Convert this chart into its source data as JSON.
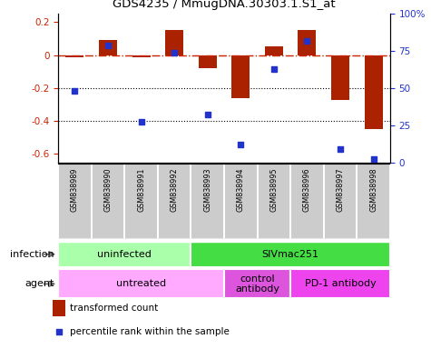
{
  "title": "GDS4235 / MmugDNA.30303.1.S1_at",
  "samples": [
    "GSM838989",
    "GSM838990",
    "GSM838991",
    "GSM838992",
    "GSM838993",
    "GSM838994",
    "GSM838995",
    "GSM838996",
    "GSM838997",
    "GSM838998"
  ],
  "bar_values": [
    -0.01,
    0.09,
    -0.01,
    0.15,
    -0.08,
    -0.26,
    0.055,
    0.15,
    -0.27,
    -0.45
  ],
  "dot_pct": [
    48,
    79,
    27,
    74,
    32,
    12,
    63,
    82,
    9,
    2
  ],
  "ylim_left": [
    -0.65,
    0.25
  ],
  "ylim_right": [
    0,
    100
  ],
  "bar_color": "#aa2200",
  "dot_color": "#2233cc",
  "hline_color": "#cc2200",
  "infection_uninfected_color": "#aaffaa",
  "infection_sivmac_color": "#44dd44",
  "agent_untreated_color": "#ffaaff",
  "agent_control_color": "#dd55dd",
  "agent_pd1_color": "#ee44ee",
  "infection_groups": [
    {
      "label": "uninfected",
      "start": 0,
      "end": 4
    },
    {
      "label": "SIVmac251",
      "start": 4,
      "end": 10
    }
  ],
  "agent_groups": [
    {
      "label": "untreated",
      "start": 0,
      "end": 5
    },
    {
      "label": "control\nantibody",
      "start": 5,
      "end": 7
    },
    {
      "label": "PD-1 antibody",
      "start": 7,
      "end": 10
    }
  ],
  "legend_bar_label": "transformed count",
  "legend_dot_label": "percentile rank within the sample",
  "right_yticks": [
    0,
    25,
    50,
    75,
    100
  ],
  "right_yticklabels": [
    "0",
    "25",
    "50",
    "75",
    "100%"
  ],
  "left_yticks": [
    -0.6,
    -0.4,
    -0.2,
    0.0,
    0.2
  ],
  "left_yticklabels": [
    "-0.6",
    "-0.4",
    "-0.2",
    "0",
    "0.2"
  ]
}
